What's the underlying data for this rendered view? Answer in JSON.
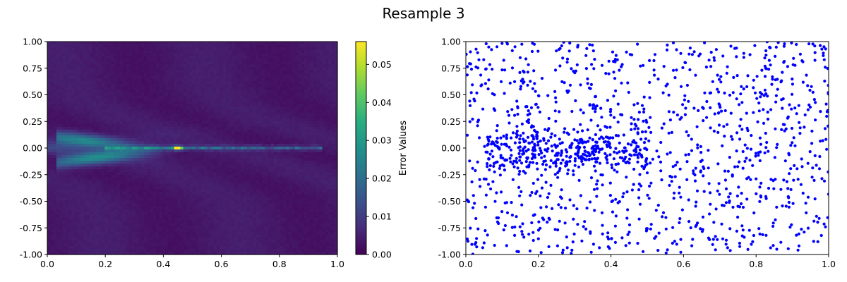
{
  "figure": {
    "title": "Resample 3"
  },
  "chart_data": [
    {
      "type": "heatmap",
      "xlim": [
        0.0,
        1.0
      ],
      "ylim": [
        -1.0,
        1.0
      ],
      "x_ticks": [
        "0.0",
        "0.2",
        "0.4",
        "0.6",
        "0.8",
        "1.0"
      ],
      "y_ticks": [
        "1.00",
        "0.75",
        "0.50",
        "0.25",
        "0.00",
        "-0.25",
        "-0.50",
        "-0.75",
        "-1.00"
      ],
      "colorbar": {
        "label": "Error Values",
        "range": [
          0.0,
          0.056
        ],
        "ticks": [
          "0.05",
          "0.04",
          "0.03",
          "0.02",
          "0.01",
          "0.00"
        ],
        "colormap": "viridis"
      },
      "features": {
        "peak_x": 0.45,
        "peak_y": 0.0,
        "peak_value": 0.056,
        "wedge_lobes": [
          {
            "slope": 0.33,
            "value": 0.02
          },
          {
            "slope": -0.33,
            "value": 0.022
          }
        ]
      }
    },
    {
      "type": "scatter",
      "xlim": [
        0.0,
        1.0
      ],
      "ylim": [
        -1.0,
        1.0
      ],
      "x_ticks": [
        "0.0",
        "0.2",
        "0.4",
        "0.6",
        "0.8",
        "1.0"
      ],
      "y_ticks": [
        "1.00",
        "0.75",
        "0.50",
        "0.25",
        "0.00",
        "-0.25",
        "-0.50",
        "-0.75",
        "-1.00"
      ],
      "point_color": "#0000ff",
      "approx_point_count": 1400,
      "distribution": "uniform background with a dense band near y = 0 for x between 0.05 and 0.5"
    }
  ]
}
